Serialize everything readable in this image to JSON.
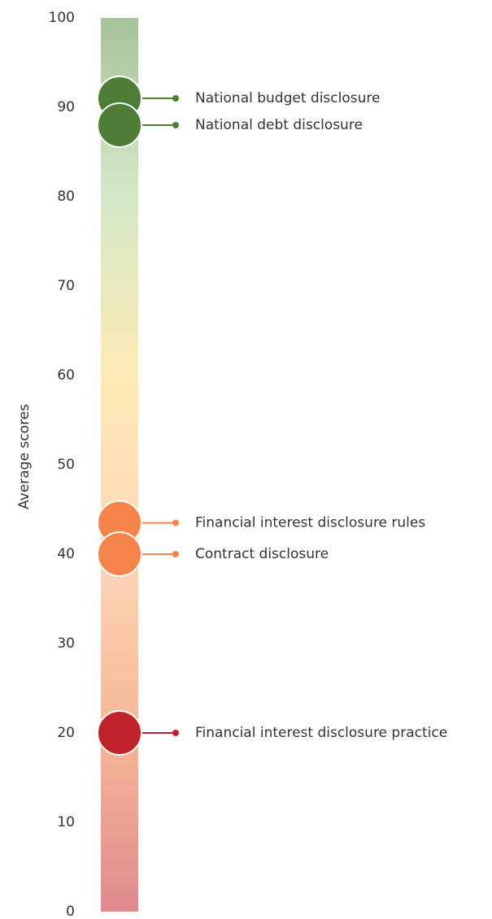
{
  "chart_data": {
    "type": "dot_scale",
    "y_label": "Average scores",
    "categories": [
      "National budget disclosure",
      "National debt disclosure",
      "Financial interest disclosure rules",
      "Contract disclosure",
      "Financial interest disclosure practice"
    ],
    "values": [
      91,
      88,
      43.5,
      40,
      20
    ],
    "colors": [
      "#4e7d36",
      "#4e7d36",
      "#f5844a",
      "#f5844a",
      "#c0222a"
    ],
    "scale_colors": [
      "#a7c39a",
      "#d4e8c8",
      "#fdeab4",
      "#fcd7b8",
      "#f6b796",
      "#e08a8f"
    ],
    "ylim": [
      0,
      100
    ],
    "yticks": [
      0,
      10,
      20,
      30,
      40,
      50,
      60,
      70,
      80,
      90,
      100
    ]
  }
}
